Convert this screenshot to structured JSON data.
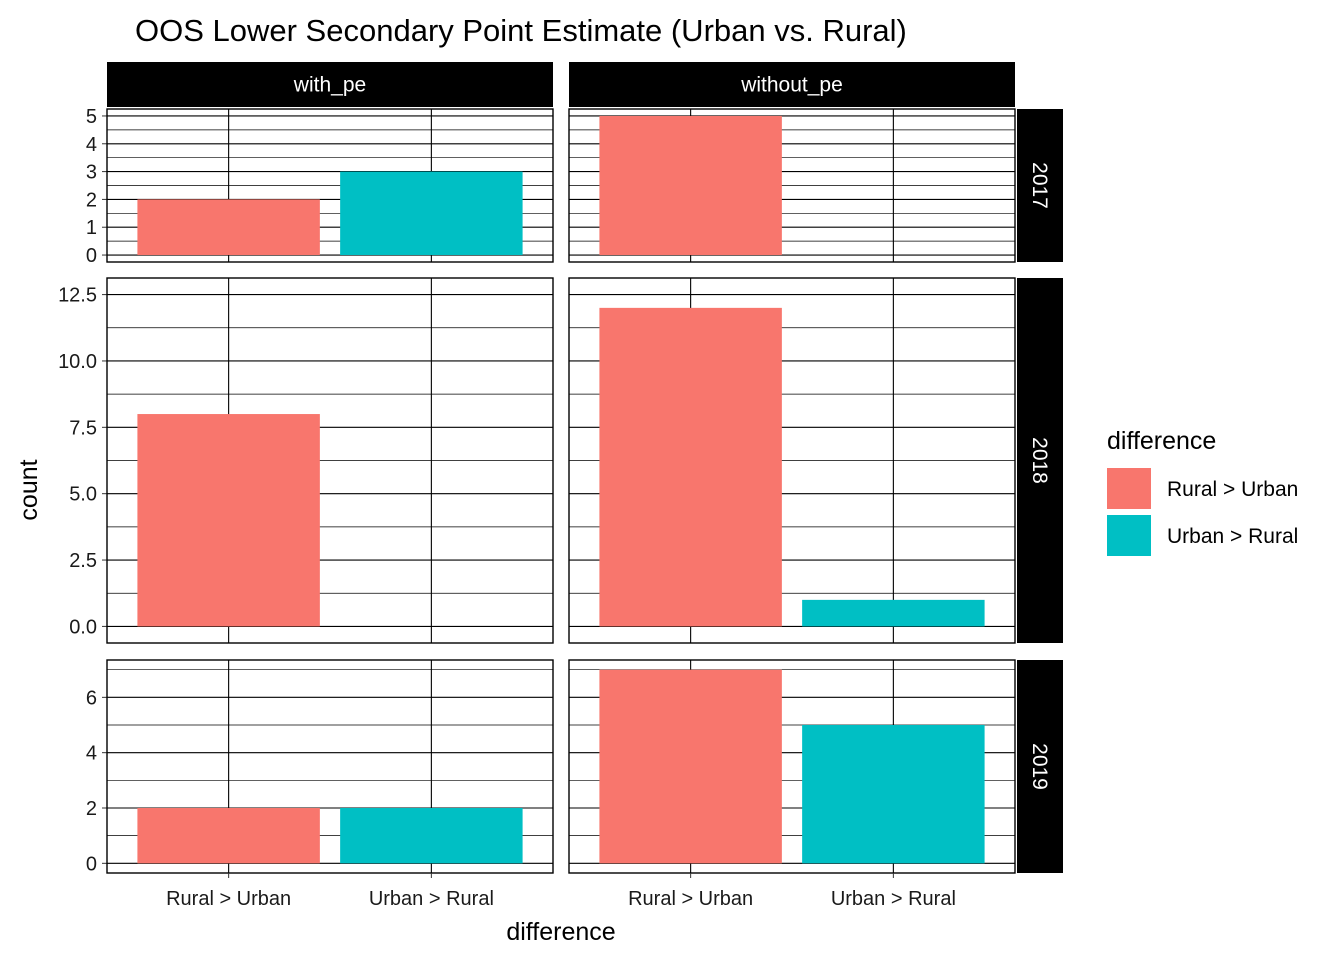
{
  "chart_data": {
    "type": "bar",
    "title": "OOS Lower Secondary Point Estimate (Urban vs. Rural)",
    "xlabel": "difference",
    "ylabel": "count",
    "categories": [
      "Rural >  Urban",
      "Urban > Rural"
    ],
    "facet_columns": [
      "with_pe",
      "without_pe"
    ],
    "facet_rows": [
      "2017",
      "2018",
      "2019"
    ],
    "legend": {
      "title": "difference",
      "placement": "right",
      "entries": [
        {
          "label": "Rural >  Urban",
          "color": "#F8766D"
        },
        {
          "label": "Urban > Rural",
          "color": "#00BFC4"
        }
      ]
    },
    "rows": [
      {
        "label": "2017",
        "ylim": [
          0,
          5
        ],
        "yticks": [
          0,
          1,
          2,
          3,
          4,
          5
        ],
        "ytick_labels": [
          "0",
          "1",
          "2",
          "3",
          "4",
          "5"
        ],
        "panels": [
          {
            "column": "with_pe",
            "values": [
              2,
              3
            ]
          },
          {
            "column": "without_pe",
            "values": [
              5,
              0
            ]
          }
        ]
      },
      {
        "label": "2018",
        "ylim": [
          0,
          12.5
        ],
        "yticks": [
          0,
          2.5,
          5,
          7.5,
          10,
          12.5
        ],
        "ytick_labels": [
          "0.0",
          "2.5",
          "5.0",
          "7.5",
          "10.0",
          "12.5"
        ],
        "panels": [
          {
            "column": "with_pe",
            "values": [
              8,
              0
            ]
          },
          {
            "column": "without_pe",
            "values": [
              12,
              1
            ]
          }
        ]
      },
      {
        "label": "2019",
        "ylim": [
          0,
          7
        ],
        "yticks": [
          0,
          2,
          4,
          6
        ],
        "ytick_labels": [
          "0",
          "2",
          "4",
          "6"
        ],
        "panels": [
          {
            "column": "with_pe",
            "values": [
              2,
              2
            ]
          },
          {
            "column": "without_pe",
            "values": [
              7,
              5
            ]
          }
        ]
      }
    ],
    "grid": true
  }
}
